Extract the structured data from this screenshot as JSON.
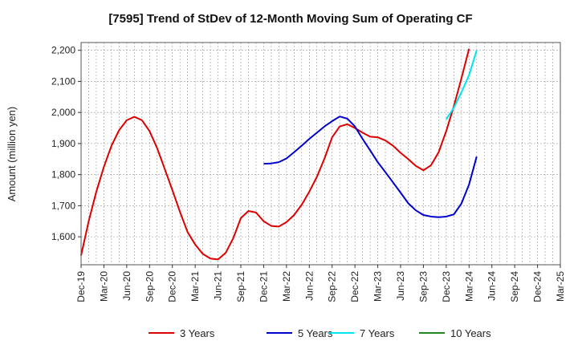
{
  "chart_data": {
    "type": "line",
    "title": "[7595]  Trend of StDev of 12-Month Moving Sum of Operating CF",
    "xlabel": "",
    "ylabel": "Amount (million yen)",
    "ylim": [
      1510,
      2225
    ],
    "yticks": [
      1600,
      1700,
      1800,
      1900,
      2000,
      2100,
      2200
    ],
    "ytick_labels": [
      "1,600",
      "1,700",
      "1,800",
      "1,900",
      "2,000",
      "2,100",
      "2,200"
    ],
    "x_start": "2019-12",
    "x_end": "2025-03",
    "x_ticks": [
      "Dec-19",
      "Mar-20",
      "Jun-20",
      "Sep-20",
      "Dec-20",
      "Mar-21",
      "Jun-21",
      "Sep-21",
      "Dec-21",
      "Mar-22",
      "Jun-22",
      "Sep-22",
      "Dec-22",
      "Mar-23",
      "Jun-23",
      "Sep-23",
      "Dec-23",
      "Mar-24",
      "Jun-24",
      "Sep-24",
      "Dec-24",
      "Mar-25"
    ],
    "grid": true,
    "legend_position": "bottom",
    "series": [
      {
        "name": "3 Years",
        "color": "#dd0000",
        "start": "2019-12",
        "values": [
          1540,
          1650,
          1745,
          1825,
          1893,
          1943,
          1975,
          1986,
          1975,
          1940,
          1885,
          1818,
          1750,
          1680,
          1615,
          1575,
          1545,
          1530,
          1527,
          1548,
          1595,
          1660,
          1683,
          1678,
          1650,
          1635,
          1633,
          1647,
          1670,
          1703,
          1745,
          1793,
          1852,
          1920,
          1955,
          1962,
          1950,
          1935,
          1922,
          1920,
          1910,
          1893,
          1870,
          1850,
          1828,
          1814,
          1830,
          1872,
          1940,
          2020,
          2110,
          2205
        ]
      },
      {
        "name": "5 Years",
        "color": "#0000cc",
        "start": "2021-12",
        "values": [
          1835,
          1836,
          1840,
          1852,
          1872,
          1893,
          1915,
          1935,
          1955,
          1972,
          1987,
          1980,
          1955,
          1915,
          1878,
          1840,
          1808,
          1775,
          1742,
          1708,
          1685,
          1670,
          1665,
          1663,
          1665,
          1672,
          1707,
          1768,
          1858
        ]
      },
      {
        "name": "7 Years",
        "color": "#00e5ee",
        "start": "2023-12",
        "values": [
          1978,
          2015,
          2065,
          2120,
          2200
        ]
      },
      {
        "name": "10 Years",
        "color": "#228822",
        "start": "2024-03",
        "values": []
      }
    ]
  }
}
